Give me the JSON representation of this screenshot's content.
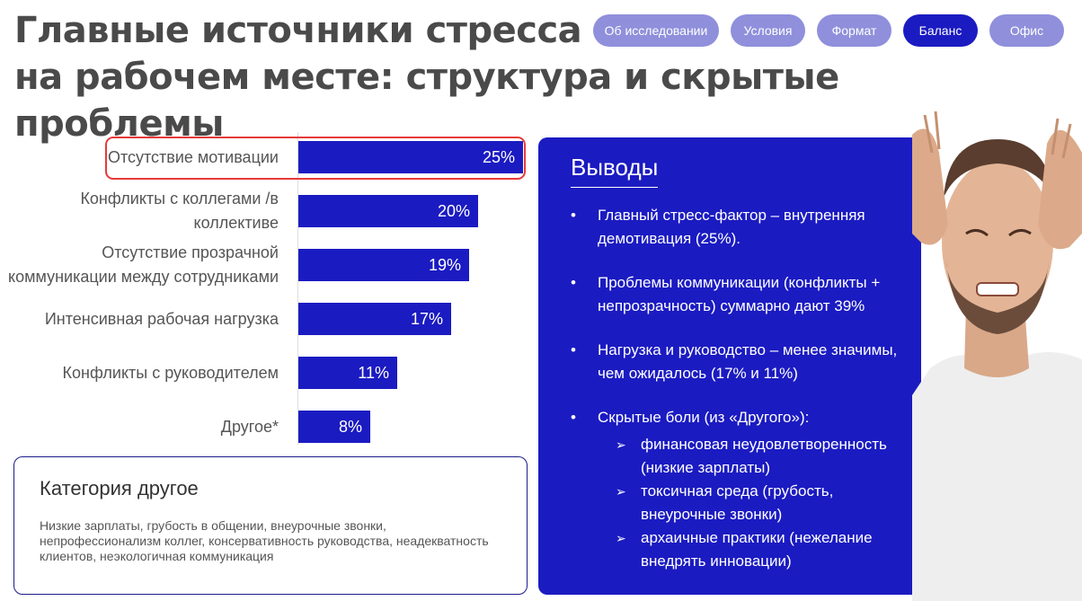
{
  "title": {
    "line1": "Главные источники стресса",
    "line2": "на рабочем месте: структура и скрытые проблемы"
  },
  "nav": {
    "items": [
      {
        "label": "Об исследовании",
        "active": false
      },
      {
        "label": "Условия",
        "active": false
      },
      {
        "label": "Формат",
        "active": false
      },
      {
        "label": "Баланс",
        "active": true
      },
      {
        "label": "Офис",
        "active": false
      }
    ]
  },
  "chart_data": {
    "type": "bar",
    "orientation": "horizontal",
    "categories": [
      "Отсутствие мотивации",
      "Конфликты с коллегами /в коллективе",
      "Отсутствие прозрачной коммуникации между сотрудниками",
      "Интенсивная рабочая нагрузка",
      "Конфликты с руководителем",
      "Другое*"
    ],
    "values": [
      25,
      20,
      19,
      17,
      11,
      8
    ],
    "value_labels": [
      "25%",
      "20%",
      "19%",
      "17%",
      "11%",
      "8%"
    ],
    "highlighted_category": "Отсутствие мотивации",
    "bar_color": "#1b1bc2",
    "highlight_color": "#e63a3a",
    "xlim": [
      0,
      25
    ]
  },
  "other_category": {
    "heading": "Категория другое",
    "text": "Низкие зарплаты, грубость в общении, внеурочные звонки, непрофессионализм коллег, консервативность руководства, неадекватность клиентов, неэкологичная коммуникация"
  },
  "conclusions": {
    "heading": "Выводы",
    "items": [
      "Главный стресс-фактор – внутренняя демотивация (25%).",
      "Проблемы коммуникации (конфликты + непрозрачность) суммарно дают 39%",
      "Нагрузка и руководство – менее значимы, чем ожидалось (17% и 11%)",
      "Скрытые боли (из «Другого»):"
    ],
    "sub_items": [
      "финансовая неудовлетворенность (низкие зарплаты)",
      "токсичная среда (грубость, внеурочные звонки)",
      "архаичные практики (нежелание внедрять инновации)"
    ]
  },
  "colors": {
    "accent": "#1b1bc2",
    "pill_inactive": "#8f8fdc",
    "highlight_border": "#e63a3a",
    "title_text": "#4a4a4a"
  }
}
